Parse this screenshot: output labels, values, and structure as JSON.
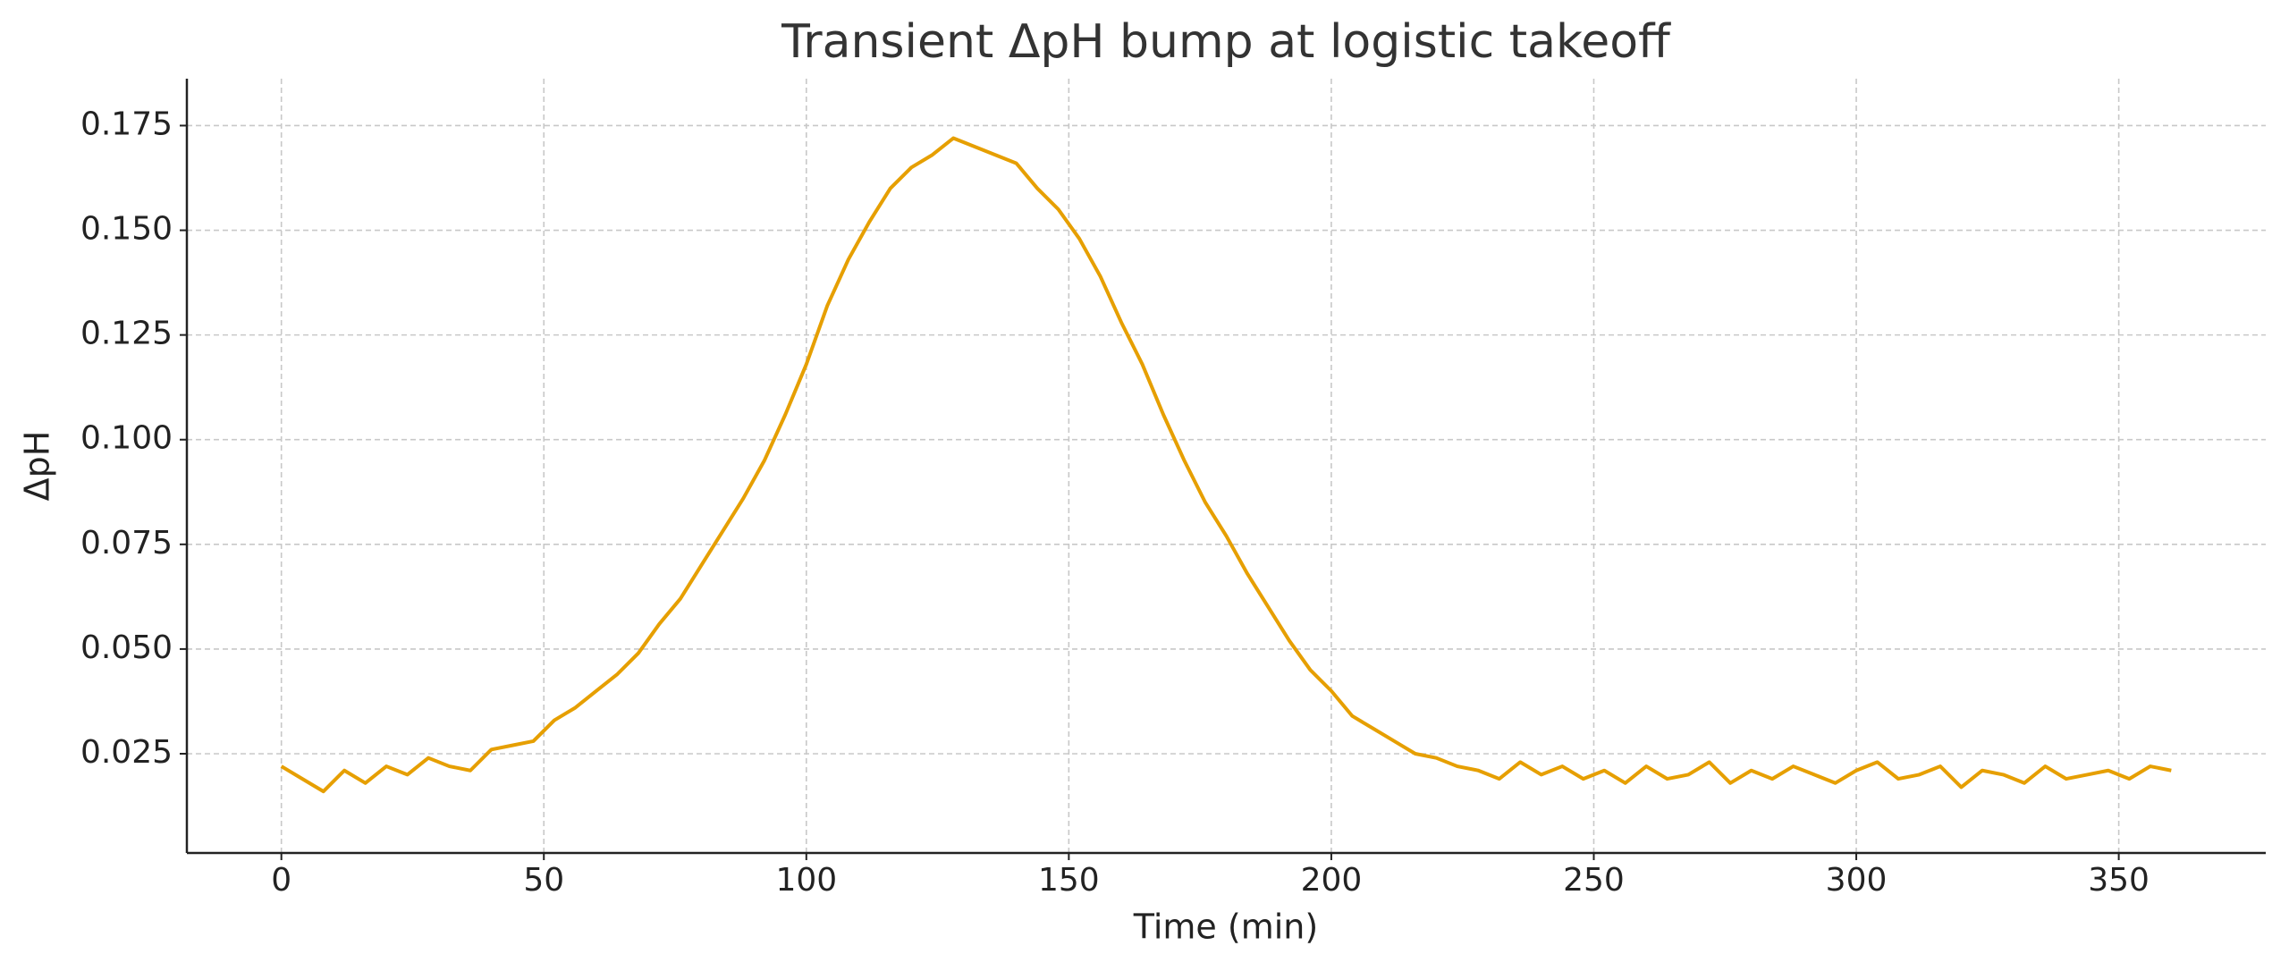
{
  "chart_data": {
    "type": "line",
    "title": "Transient ΔpH bump at logistic takeoff",
    "xlabel": "Time (min)",
    "ylabel": "ΔpH",
    "x": [
      0,
      4,
      8,
      12,
      16,
      20,
      24,
      28,
      32,
      36,
      40,
      44,
      48,
      52,
      56,
      60,
      64,
      68,
      72,
      76,
      80,
      84,
      88,
      92,
      96,
      100,
      104,
      108,
      112,
      116,
      120,
      124,
      128,
      132,
      136,
      140,
      144,
      148,
      152,
      156,
      160,
      164,
      168,
      172,
      176,
      180,
      184,
      188,
      192,
      196,
      200,
      204,
      208,
      212,
      216,
      220,
      224,
      228,
      232,
      236,
      240,
      244,
      248,
      252,
      256,
      260,
      264,
      268,
      272,
      276,
      280,
      284,
      288,
      292,
      296,
      300,
      304,
      308,
      312,
      316,
      320,
      324,
      328,
      332,
      336,
      340,
      344,
      348,
      352,
      356,
      360
    ],
    "series": [
      {
        "name": "ΔpH",
        "color": "#e69f00",
        "values": [
          0.022,
          0.019,
          0.016,
          0.021,
          0.018,
          0.022,
          0.02,
          0.024,
          0.022,
          0.021,
          0.026,
          0.027,
          0.028,
          0.033,
          0.036,
          0.04,
          0.044,
          0.049,
          0.056,
          0.062,
          0.07,
          0.078,
          0.086,
          0.095,
          0.106,
          0.118,
          0.132,
          0.143,
          0.152,
          0.16,
          0.165,
          0.168,
          0.172,
          0.17,
          0.168,
          0.166,
          0.16,
          0.155,
          0.148,
          0.139,
          0.128,
          0.118,
          0.106,
          0.095,
          0.085,
          0.077,
          0.068,
          0.06,
          0.052,
          0.045,
          0.04,
          0.034,
          0.031,
          0.028,
          0.025,
          0.024,
          0.022,
          0.021,
          0.019,
          0.023,
          0.02,
          0.022,
          0.019,
          0.021,
          0.018,
          0.022,
          0.019,
          0.02,
          0.023,
          0.018,
          0.021,
          0.019,
          0.022,
          0.02,
          0.018,
          0.021,
          0.023,
          0.019,
          0.02,
          0.022,
          0.017,
          0.021,
          0.02,
          0.018,
          0.022,
          0.019,
          0.02,
          0.021,
          0.019,
          0.022,
          0.021
        ]
      }
    ],
    "xlim": [
      -18,
      378
    ],
    "ylim": [
      0.0013,
      0.1862
    ],
    "xticks": [
      0,
      50,
      100,
      150,
      200,
      250,
      300,
      350
    ],
    "yticks": [
      0.025,
      {
        "value": 0.05,
        "label": "0.050"
      },
      0.075,
      {
        "value": 0.1,
        "label": "0.100"
      },
      0.125,
      {
        "value": 0.15,
        "label": "0.150"
      },
      0.175
    ],
    "grid": true
  }
}
